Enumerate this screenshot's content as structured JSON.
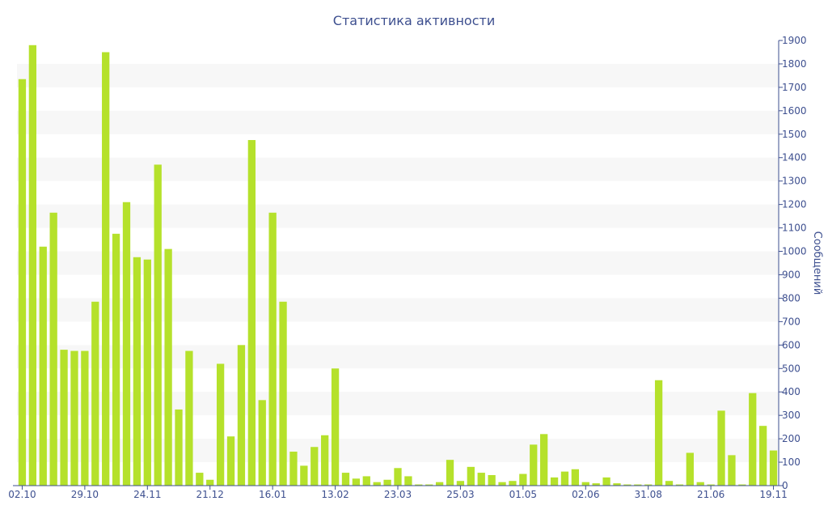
{
  "chart_data": {
    "type": "bar",
    "title": "Статистика активности",
    "xlabel": "",
    "ylabel": "Сообщений",
    "ylim": [
      0,
      1900
    ],
    "yticks": [
      0,
      100,
      200,
      300,
      400,
      500,
      600,
      700,
      800,
      900,
      1000,
      1100,
      1200,
      1300,
      1400,
      1500,
      1600,
      1700,
      1800,
      1900
    ],
    "y_axis_side": "right",
    "grid": "alternating horizontal bands",
    "bar_color": "#b5e12b",
    "band_color": "#f7f7f7",
    "text_color": "#3d4f8f",
    "x_tick_labels": [
      {
        "index": 0,
        "label": "02.10"
      },
      {
        "index": 6,
        "label": "29.10"
      },
      {
        "index": 12,
        "label": "24.11"
      },
      {
        "index": 18,
        "label": "21.12"
      },
      {
        "index": 24,
        "label": "16.01"
      },
      {
        "index": 30,
        "label": "13.02"
      },
      {
        "index": 36,
        "label": "23.03"
      },
      {
        "index": 42,
        "label": "25.03"
      },
      {
        "index": 48,
        "label": "01.05"
      },
      {
        "index": 54,
        "label": "02.06"
      },
      {
        "index": 60,
        "label": "31.08"
      },
      {
        "index": 66,
        "label": "21.06"
      },
      {
        "index": 72,
        "label": "19.11"
      }
    ],
    "values": [
      1735,
      1880,
      1020,
      1165,
      580,
      575,
      575,
      785,
      1850,
      1075,
      1210,
      975,
      965,
      1370,
      1010,
      325,
      575,
      55,
      25,
      520,
      210,
      600,
      1475,
      365,
      1165,
      785,
      145,
      85,
      165,
      215,
      500,
      55,
      30,
      40,
      15,
      25,
      75,
      40,
      5,
      5,
      15,
      110,
      20,
      80,
      55,
      45,
      15,
      20,
      50,
      175,
      220,
      35,
      60,
      70,
      15,
      10,
      35,
      10,
      5,
      5,
      5,
      450,
      20,
      5,
      140,
      15,
      5,
      320,
      130,
      5,
      395,
      255,
      150
    ]
  }
}
